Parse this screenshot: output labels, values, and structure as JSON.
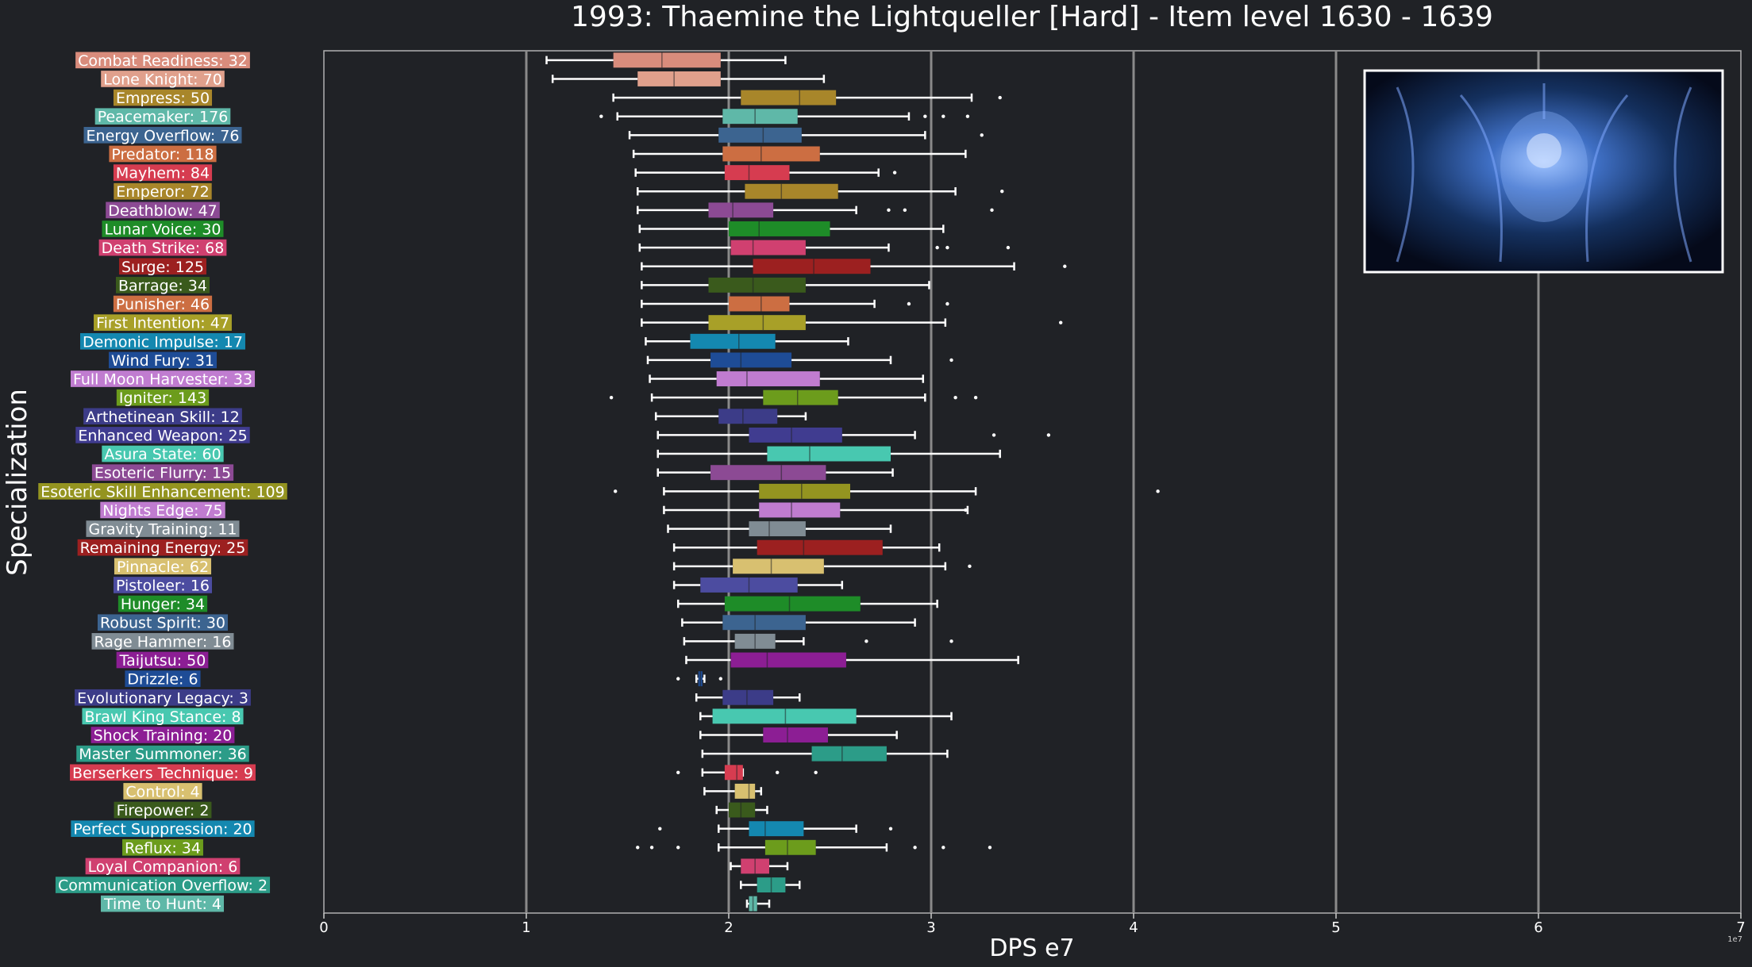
{
  "chart_data": {
    "type": "box",
    "title": "1993: Thaemine the Lightqueller [Hard] - Item level 1630 - 1639",
    "xlabel": "DPS e7",
    "ylabel": "Specialization",
    "x_offset_label": "1e7",
    "xlim": [
      0,
      7
    ],
    "x_ticks": [
      0,
      1,
      2,
      3,
      4,
      5,
      6,
      7
    ],
    "grid": "vertical",
    "inset_image": "thaemine-boss-artwork",
    "series": [
      {
        "label": "Combat Readiness: 32",
        "color": "#d98c7c",
        "box": [
          1.1,
          1.43,
          1.67,
          1.96,
          2.28
        ],
        "outliers": []
      },
      {
        "label": "Lone Knight: 70",
        "color": "#e0a08c",
        "box": [
          1.13,
          1.55,
          1.73,
          1.96,
          2.47
        ],
        "outliers": []
      },
      {
        "label": "Empress: 50",
        "color": "#a8862a",
        "box": [
          1.43,
          2.06,
          2.35,
          2.53,
          3.2
        ],
        "outliers": [
          3.34
        ]
      },
      {
        "label": "Peacemaker: 176",
        "color": "#5fb8a8",
        "box": [
          1.45,
          1.97,
          2.13,
          2.34,
          2.89
        ],
        "outliers": [
          1.37,
          2.97,
          3.06,
          3.18
        ]
      },
      {
        "label": "Energy Overflow: 76",
        "color": "#3c6490",
        "box": [
          1.51,
          1.95,
          2.17,
          2.36,
          2.97
        ],
        "outliers": [
          3.25
        ]
      },
      {
        "label": "Predator: 118",
        "color": "#cc6e42",
        "box": [
          1.53,
          1.97,
          2.16,
          2.45,
          3.17
        ],
        "outliers": []
      },
      {
        "label": "Mayhem: 84",
        "color": "#d63c50",
        "box": [
          1.54,
          1.98,
          2.1,
          2.3,
          2.74
        ],
        "outliers": [
          2.82
        ]
      },
      {
        "label": "Emperor: 72",
        "color": "#a8862a",
        "box": [
          1.55,
          2.08,
          2.26,
          2.54,
          3.12
        ],
        "outliers": [
          3.35
        ]
      },
      {
        "label": "Deathblow: 47",
        "color": "#8c4a94",
        "box": [
          1.55,
          1.9,
          2.02,
          2.22,
          2.63
        ],
        "outliers": [
          2.79,
          2.87,
          3.3
        ]
      },
      {
        "label": "Lunar Voice: 30",
        "color": "#1e8c28",
        "box": [
          1.56,
          2.0,
          2.15,
          2.5,
          3.06
        ],
        "outliers": []
      },
      {
        "label": "Death Strike: 68",
        "color": "#d04070",
        "box": [
          1.56,
          2.01,
          2.12,
          2.38,
          2.79
        ],
        "outliers": [
          3.03,
          3.08,
          3.38
        ]
      },
      {
        "label": "Surge: 125",
        "color": "#9c2020",
        "box": [
          1.57,
          2.12,
          2.42,
          2.7,
          3.41
        ],
        "outliers": [
          3.66
        ]
      },
      {
        "label": "Barrage: 34",
        "color": "#3a5a1c",
        "box": [
          1.57,
          1.9,
          2.12,
          2.38,
          2.99
        ],
        "outliers": []
      },
      {
        "label": "Punisher: 46",
        "color": "#cc6e42",
        "box": [
          1.57,
          2.0,
          2.16,
          2.3,
          2.72
        ],
        "outliers": [
          2.89,
          3.08
        ]
      },
      {
        "label": "First Intention: 47",
        "color": "#a8a028",
        "box": [
          1.57,
          1.9,
          2.17,
          2.38,
          3.07
        ],
        "outliers": [
          3.64
        ]
      },
      {
        "label": "Demonic Impulse: 17",
        "color": "#1488b0",
        "box": [
          1.59,
          1.81,
          2.05,
          2.23,
          2.59
        ],
        "outliers": []
      },
      {
        "label": "Wind Fury: 31",
        "color": "#1e4c96",
        "box": [
          1.6,
          1.91,
          2.06,
          2.31,
          2.8
        ],
        "outliers": [
          3.1
        ]
      },
      {
        "label": "Full Moon Harvester: 33",
        "color": "#c07cd0",
        "box": [
          1.61,
          1.94,
          2.09,
          2.45,
          2.96
        ],
        "outliers": []
      },
      {
        "label": "Igniter: 143",
        "color": "#6c9c1c",
        "box": [
          1.62,
          2.17,
          2.34,
          2.54,
          2.97
        ],
        "outliers": [
          1.42,
          3.12,
          3.22
        ]
      },
      {
        "label": "Arthetinean Skill: 12",
        "color": "#3c3c88",
        "box": [
          1.64,
          1.95,
          2.07,
          2.24,
          2.38
        ],
        "outliers": []
      },
      {
        "label": "Enhanced Weapon: 25",
        "color": "#403c90",
        "box": [
          1.65,
          2.1,
          2.31,
          2.56,
          2.92
        ],
        "outliers": [
          3.31,
          3.58
        ]
      },
      {
        "label": "Asura State: 60",
        "color": "#48c8b0",
        "box": [
          1.65,
          2.19,
          2.4,
          2.8,
          3.34
        ],
        "outliers": []
      },
      {
        "label": "Esoteric Flurry: 15",
        "color": "#8c4a94",
        "box": [
          1.65,
          1.91,
          2.26,
          2.48,
          2.81
        ],
        "outliers": []
      },
      {
        "label": "Esoteric Skill Enhancement: 109",
        "color": "#949420",
        "box": [
          1.68,
          2.15,
          2.36,
          2.6,
          3.22
        ],
        "outliers": [
          1.44,
          4.12
        ]
      },
      {
        "label": "Nights Edge: 75",
        "color": "#c07cd0",
        "box": [
          1.68,
          2.15,
          2.31,
          2.55,
          3.18
        ],
        "outliers": [
          3.17
        ]
      },
      {
        "label": "Gravity Training: 11",
        "color": "#808c94",
        "box": [
          1.7,
          2.1,
          2.2,
          2.38,
          2.8
        ],
        "outliers": []
      },
      {
        "label": "Remaining Energy: 25",
        "color": "#9c2020",
        "box": [
          1.73,
          2.14,
          2.37,
          2.76,
          3.04
        ],
        "outliers": []
      },
      {
        "label": "Pinnacle: 62",
        "color": "#d8c070",
        "box": [
          1.73,
          2.02,
          2.21,
          2.47,
          3.07
        ],
        "outliers": [
          3.19
        ]
      },
      {
        "label": "Pistoleer: 16",
        "color": "#4c4ca0",
        "box": [
          1.73,
          1.86,
          2.1,
          2.34,
          2.56
        ],
        "outliers": []
      },
      {
        "label": "Hunger: 34",
        "color": "#1e8c28",
        "box": [
          1.75,
          1.98,
          2.3,
          2.65,
          3.03
        ],
        "outliers": []
      },
      {
        "label": "Robust Spirit: 30",
        "color": "#3c6490",
        "box": [
          1.77,
          1.97,
          2.13,
          2.38,
          2.92
        ],
        "outliers": []
      },
      {
        "label": "Rage Hammer: 16",
        "color": "#808c94",
        "box": [
          1.78,
          2.03,
          2.13,
          2.23,
          2.37
        ],
        "outliers": [
          2.68,
          3.1
        ]
      },
      {
        "label": "Taijutsu: 50",
        "color": "#8c1e94",
        "box": [
          1.79,
          2.01,
          2.19,
          2.58,
          3.43
        ],
        "outliers": []
      },
      {
        "label": "Drizzle: 6",
        "color": "#1e4c96",
        "box": [
          1.84,
          1.85,
          1.86,
          1.87,
          1.88
        ],
        "outliers": [
          1.75,
          1.96
        ]
      },
      {
        "label": "Evolutionary Legacy: 3",
        "color": "#3c3c88",
        "box": [
          1.84,
          1.97,
          2.09,
          2.22,
          2.35
        ],
        "outliers": []
      },
      {
        "label": "Brawl King Stance: 8",
        "color": "#48c8b0",
        "box": [
          1.86,
          1.92,
          2.28,
          2.63,
          3.1
        ],
        "outliers": []
      },
      {
        "label": "Shock Training: 20",
        "color": "#8c1e94",
        "box": [
          1.86,
          2.17,
          2.29,
          2.49,
          2.83
        ],
        "outliers": []
      },
      {
        "label": "Master Summoner: 36",
        "color": "#2c9c88",
        "box": [
          1.87,
          2.41,
          2.56,
          2.78,
          3.08
        ],
        "outliers": []
      },
      {
        "label": "Berserkers Technique: 9",
        "color": "#d63c50",
        "box": [
          1.87,
          1.98,
          2.04,
          2.07,
          2.07
        ],
        "outliers": [
          1.75,
          2.24,
          2.43
        ]
      },
      {
        "label": "Control: 4",
        "color": "#d8c070",
        "box": [
          1.88,
          2.03,
          2.1,
          2.13,
          2.16
        ],
        "outliers": []
      },
      {
        "label": "Firepower: 2",
        "color": "#3a5a1c",
        "box": [
          1.94,
          2.0,
          2.06,
          2.13,
          2.19
        ],
        "outliers": []
      },
      {
        "label": "Perfect Suppression: 20",
        "color": "#1488b0",
        "box": [
          1.95,
          2.1,
          2.18,
          2.37,
          2.63
        ],
        "outliers": [
          1.66,
          2.8
        ]
      },
      {
        "label": "Reflux: 34",
        "color": "#6c9c1c",
        "box": [
          1.95,
          2.18,
          2.29,
          2.43,
          2.78
        ],
        "outliers": [
          1.55,
          1.62,
          1.75,
          2.92,
          3.06,
          3.29
        ]
      },
      {
        "label": "Loyal Companion: 6",
        "color": "#d04070",
        "box": [
          2.01,
          2.06,
          2.13,
          2.2,
          2.29
        ],
        "outliers": []
      },
      {
        "label": "Communication Overflow: 2",
        "color": "#2c9c88",
        "box": [
          2.06,
          2.14,
          2.21,
          2.28,
          2.35
        ],
        "outliers": []
      },
      {
        "label": "Time to Hunt: 4",
        "color": "#5fb8a8",
        "box": [
          2.09,
          2.1,
          2.12,
          2.14,
          2.2
        ],
        "outliers": []
      }
    ]
  }
}
